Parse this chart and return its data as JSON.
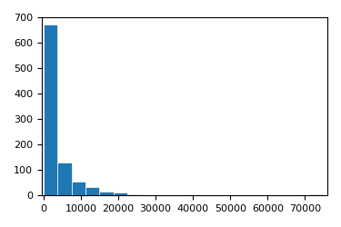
{
  "title": "",
  "bins": 20,
  "bar_color": "#1f77b4",
  "bar_edgecolor": "white",
  "xlim_min": -500,
  "xlim_max": 76000,
  "ylim": [
    0,
    700
  ],
  "yticks": [
    0,
    100,
    200,
    300,
    400,
    500,
    600,
    700
  ],
  "xticks": [
    0,
    10000,
    20000,
    30000,
    40000,
    50000,
    60000,
    70000
  ],
  "figsize": [
    3.75,
    2.5
  ],
  "dpi": 100,
  "data_max": 75000,
  "bin_edges": [
    0,
    3750,
    7500,
    11250,
    15000,
    18750,
    22500,
    26250,
    30000,
    33750,
    37500,
    41250,
    45000,
    48750,
    52500,
    56250,
    60000,
    63750,
    67500,
    71250,
    75000
  ],
  "bin_heights": [
    672,
    130,
    55,
    33,
    17,
    12,
    3,
    1,
    2,
    0,
    2,
    0,
    1,
    0,
    0,
    1,
    0,
    0,
    0,
    3
  ]
}
